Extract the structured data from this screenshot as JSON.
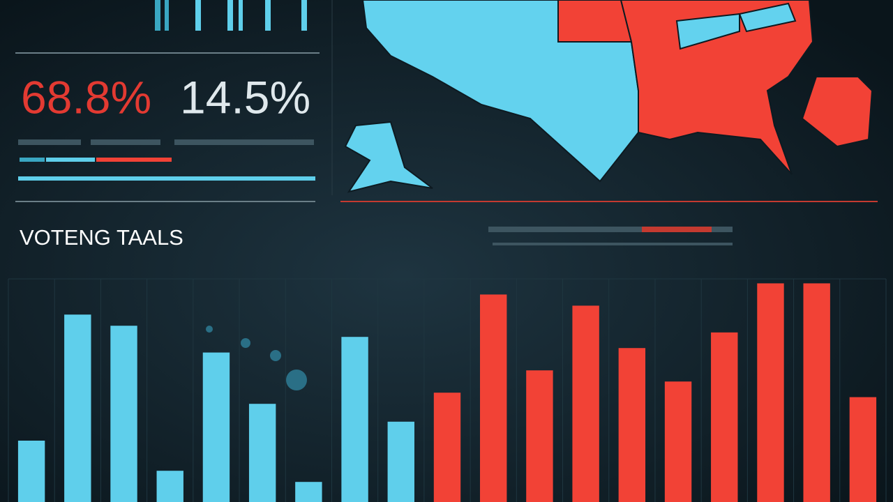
{
  "header": {
    "stat_left": "68.8%",
    "stat_right": "14.5%"
  },
  "chart_data": {
    "type": "bar",
    "title": "VOTENG TAALS",
    "categories": [
      null,
      null,
      null,
      null,
      null,
      null,
      null,
      null,
      null,
      null,
      null,
      null,
      null,
      null,
      null,
      null,
      null,
      null,
      null
    ],
    "series": [
      {
        "color": "#5fcfeb",
        "values": [
          27.5,
          84,
          79,
          14,
          67,
          44,
          9,
          74,
          36,
          null,
          null,
          null,
          null,
          null,
          null,
          null,
          null,
          null,
          null
        ]
      },
      {
        "color": "#f24236",
        "values": [
          null,
          null,
          null,
          null,
          null,
          null,
          null,
          null,
          null,
          49,
          93,
          59,
          88,
          69,
          54,
          76,
          98,
          98,
          47
        ]
      }
    ],
    "ylim": [
      0,
      100
    ],
    "grid": true
  }
}
